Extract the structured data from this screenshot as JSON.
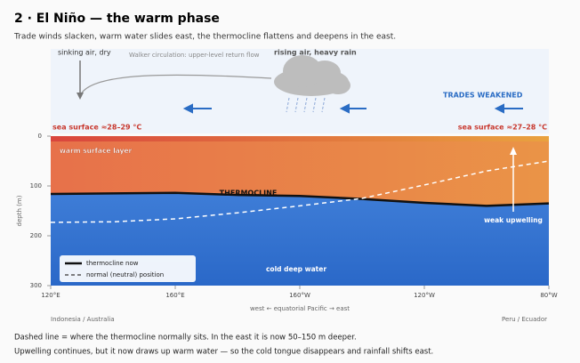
{
  "chart_data": {
    "type": "line",
    "title": "2 · El Niño — the warm phase",
    "subtitle": "Trade winds slacken, warm water slides east, the thermocline flattens and deepens in the east.",
    "annotations": {
      "sinking": "sinking air, dry",
      "walker": "Walker circulation: upper-level return flow",
      "rising": "rising air, heavy rain",
      "trades": "TRADES WEAKENED",
      "sst_west": "sea surface ≈28–29 °C",
      "sst_east": "sea surface ≈27–28 °C",
      "warm_layer": "warm surface layer",
      "thermocline": "THERMOCLINE",
      "upwelling": "weak upwelling",
      "cold": "cold deep water",
      "west_region": "Indonesia / Australia",
      "east_region": "Peru / Ecuador"
    },
    "x_label": "west ← equatorial Pacific → east",
    "y_label": "depth (m)",
    "x": [
      120,
      140,
      160,
      180,
      200,
      220,
      240,
      260,
      280
    ],
    "series": [
      {
        "name": "thermocline now",
        "color": "#111111",
        "values": [
          116,
          115,
          114,
          118,
          120,
          126,
          134,
          140,
          135
        ]
      },
      {
        "name": "normal (neutral) position",
        "color": "#ffffff",
        "values": [
          173,
          172,
          166,
          154,
          140,
          125,
          98,
          70,
          50
        ]
      }
    ],
    "xlim": [
      120,
      280
    ],
    "xticks": [
      {
        "value": 120,
        "label": "120°E"
      },
      {
        "value": 160,
        "label": "160°E"
      },
      {
        "value": 200,
        "label": "160°W"
      },
      {
        "value": 240,
        "label": "120°W"
      },
      {
        "value": 280,
        "label": "80°W"
      }
    ],
    "ylim": [
      0,
      300
    ],
    "yticks": [
      0,
      100,
      200,
      300
    ],
    "y_inverted": true,
    "footer": [
      "Dashed line = where the thermocline normally sits. In the east it is now 50–150 m deeper.",
      "Upwelling continues, but it now draws up warm water — so the cold tongue disappears and rainfall shifts east."
    ]
  }
}
